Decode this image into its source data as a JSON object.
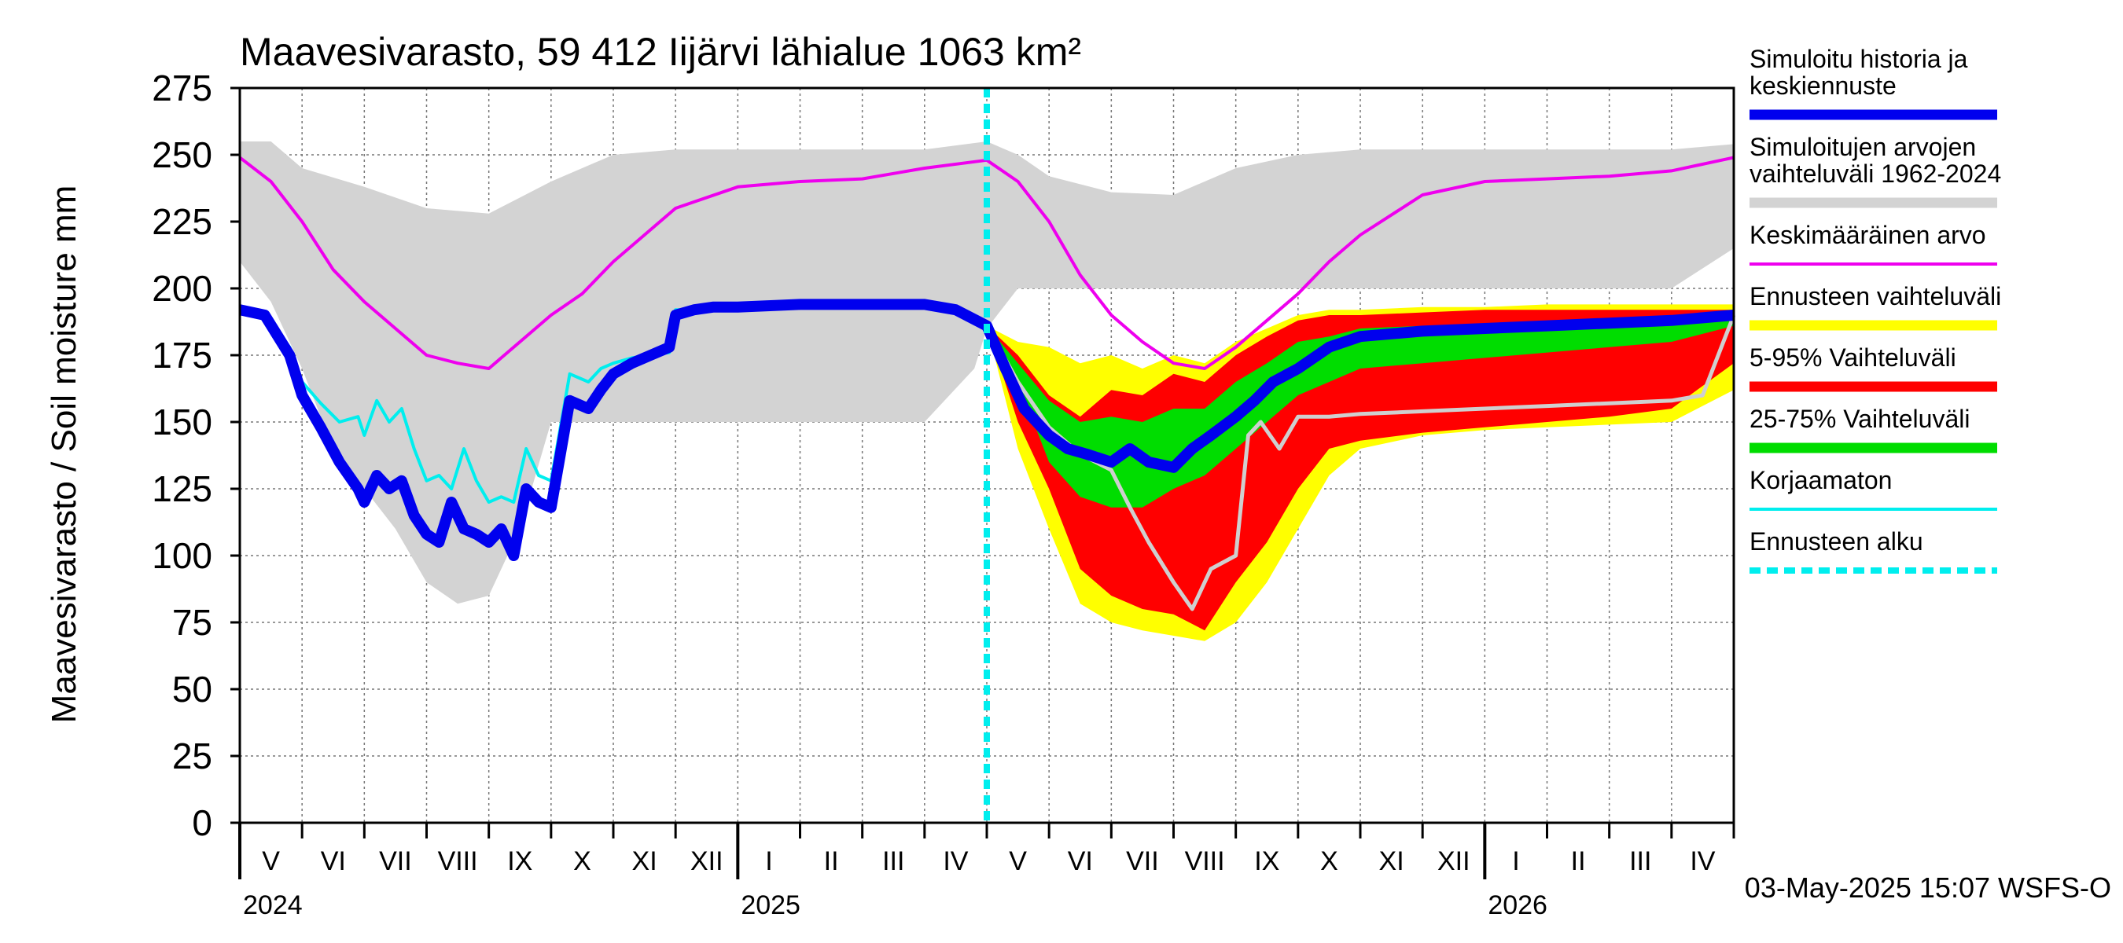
{
  "chart_data": {
    "type": "area",
    "title": "Maavesivarasto, 59 412 Iijärvi lähialue 1063 km²",
    "ylabel": "Maavesivarasto / Soil moisture   mm",
    "xlabel": "",
    "ylim": [
      0,
      275
    ],
    "yticks": [
      0,
      25,
      50,
      75,
      100,
      125,
      150,
      175,
      200,
      225,
      250,
      275
    ],
    "grid": true,
    "x_range_months": [
      0,
      24
    ],
    "x_unit": "months since 1 May 2024",
    "forecast_start": 12,
    "month_labels": [
      "V",
      "VI",
      "VII",
      "VIII",
      "IX",
      "X",
      "XI",
      "XII",
      "I",
      "II",
      "III",
      "IV",
      "V",
      "VI",
      "VII",
      "VIII",
      "IX",
      "X",
      "XI",
      "XII",
      "I",
      "II",
      "III",
      "IV"
    ],
    "year_labels": [
      {
        "label": "2024",
        "month": 0
      },
      {
        "label": "2025",
        "month": 8
      },
      {
        "label": "2026",
        "month": 20
      }
    ],
    "timestamp": "03-May-2025 15:07 WSFS-O",
    "legend": [
      {
        "key": "history",
        "label": "Simuloitu historia ja keskiennuste",
        "color": "#0000ee",
        "style": "thick"
      },
      {
        "key": "range",
        "label": "Simuloitujen arvojen vaihteluväli 1962-2024",
        "color": "#d3d3d3",
        "style": "thick"
      },
      {
        "key": "mean",
        "label": "Keskimääräinen arvo",
        "color": "#ee00ee",
        "style": "thin"
      },
      {
        "key": "fc_range",
        "label": "Ennusteen vaihteluväli",
        "color": "#ffff00",
        "style": "thick"
      },
      {
        "key": "p5_95",
        "label": "5-95% Vaihteluväli",
        "color": "#ff0000",
        "style": "thick"
      },
      {
        "key": "p25_75",
        "label": "25-75% Vaihteluväli",
        "color": "#00dd00",
        "style": "thick"
      },
      {
        "key": "uncorrected",
        "label": "Korjaamaton",
        "color": "#00eeee",
        "style": "thin"
      },
      {
        "key": "start",
        "label": "Ennusteen alku",
        "color": "#00eeee",
        "style": "dashed"
      }
    ],
    "series": [
      {
        "name": "Simuloitujen arvojen vaihteluväli 1962-2024 (max)",
        "x": [
          0,
          0.5,
          1,
          2,
          3,
          4,
          5,
          6,
          7,
          8,
          9,
          10,
          11,
          12,
          12.5,
          13,
          14,
          15,
          16,
          17,
          18,
          19,
          20,
          21,
          22,
          23,
          24
        ],
        "values": [
          255,
          255,
          245,
          238,
          230,
          228,
          240,
          250,
          252,
          252,
          252,
          252,
          252,
          255,
          250,
          242,
          236,
          235,
          245,
          250,
          252,
          252,
          252,
          252,
          252,
          252,
          254
        ]
      },
      {
        "name": "Simuloitujen arvojen vaihteluväli 1962-2024 (min)",
        "x": [
          0,
          0.5,
          1,
          1.5,
          2,
          2.5,
          3,
          3.5,
          4,
          4.5,
          5,
          6,
          7,
          8,
          9,
          10,
          11,
          11.8,
          12,
          12.5,
          13,
          14,
          15,
          16,
          17,
          18,
          19,
          20,
          21,
          22,
          23,
          24
        ],
        "values": [
          210,
          195,
          170,
          140,
          125,
          110,
          90,
          82,
          85,
          110,
          150,
          150,
          150,
          150,
          150,
          150,
          150,
          170,
          185,
          200,
          200,
          200,
          200,
          200,
          200,
          200,
          200,
          200,
          200,
          200,
          200,
          215
        ]
      },
      {
        "name": "Keskimääräinen arvo",
        "x": [
          0,
          0.5,
          1,
          1.5,
          2,
          2.5,
          3,
          3.5,
          4,
          4.5,
          5,
          5.5,
          6,
          6.5,
          7,
          8,
          9,
          10,
          11,
          12,
          12.5,
          13,
          13.5,
          14,
          14.5,
          15,
          15.5,
          16,
          16.5,
          17,
          17.5,
          18,
          19,
          20,
          21,
          22,
          23,
          24
        ],
        "values": [
          249,
          240,
          225,
          207,
          195,
          185,
          175,
          172,
          170,
          180,
          190,
          198,
          210,
          220,
          230,
          238,
          240,
          241,
          245,
          248,
          240,
          225,
          205,
          190,
          180,
          172,
          170,
          178,
          188,
          198,
          210,
          220,
          235,
          240,
          241,
          242,
          244,
          249
        ]
      },
      {
        "name": "Simuloitu historia ja keskiennuste",
        "x": [
          0,
          0.4,
          0.8,
          1,
          1.3,
          1.6,
          1.9,
          2,
          2.2,
          2.4,
          2.6,
          2.8,
          3,
          3.2,
          3.4,
          3.6,
          3.8,
          4,
          4.2,
          4.4,
          4.6,
          4.8,
          5,
          5.3,
          5.6,
          5.8,
          6,
          6.3,
          6.6,
          6.9,
          7,
          7.3,
          7.6,
          8,
          9,
          10,
          11,
          11.5,
          12,
          12.3,
          12.6,
          13,
          13.3,
          13.6,
          14,
          14.3,
          14.6,
          15,
          15.3,
          15.6,
          16,
          16.3,
          16.6,
          17,
          17.5,
          18,
          19,
          20,
          21,
          22,
          23,
          24
        ],
        "values": [
          192,
          190,
          175,
          160,
          148,
          135,
          125,
          120,
          130,
          125,
          128,
          115,
          108,
          105,
          120,
          110,
          108,
          105,
          110,
          100,
          125,
          120,
          118,
          158,
          155,
          162,
          168,
          172,
          175,
          178,
          190,
          192,
          193,
          193,
          194,
          194,
          194,
          192,
          186,
          170,
          155,
          145,
          140,
          138,
          135,
          140,
          135,
          133,
          140,
          145,
          152,
          158,
          165,
          170,
          178,
          182,
          184,
          185,
          186,
          187,
          188,
          190
        ]
      },
      {
        "name": "Korjaamaton",
        "x": [
          0,
          0.4,
          0.8,
          1,
          1.3,
          1.6,
          1.9,
          2,
          2.2,
          2.4,
          2.6,
          2.8,
          3,
          3.2,
          3.4,
          3.6,
          3.8,
          4,
          4.2,
          4.4,
          4.6,
          4.8,
          5,
          5.3,
          5.6,
          5.8,
          6,
          6.3,
          6.6,
          6.9,
          7,
          7.3,
          7.6,
          8,
          9,
          10,
          11,
          11.5,
          12
        ],
        "values": [
          192,
          190,
          178,
          165,
          157,
          150,
          152,
          145,
          158,
          150,
          155,
          140,
          128,
          130,
          125,
          140,
          128,
          120,
          122,
          120,
          140,
          130,
          128,
          168,
          165,
          170,
          172,
          174,
          175,
          176,
          192,
          192,
          192,
          192,
          193,
          193,
          193,
          191,
          186
        ]
      },
      {
        "name": "Ennusteen vaihteluväli (max)",
        "x": [
          12,
          12.5,
          13,
          13.5,
          14,
          14.5,
          15,
          15.5,
          16,
          16.5,
          17,
          17.5,
          18,
          19,
          20,
          21,
          22,
          23,
          24
        ],
        "values": [
          186,
          180,
          178,
          172,
          175,
          170,
          175,
          172,
          180,
          185,
          190,
          192,
          192,
          193,
          193,
          194,
          194,
          194,
          194
        ]
      },
      {
        "name": "Ennusteen vaihteluväli (min)",
        "x": [
          12,
          12.5,
          13,
          13.5,
          14,
          14.5,
          15,
          15.5,
          16,
          16.5,
          17,
          17.5,
          18,
          19,
          20,
          21,
          22,
          23,
          24
        ],
        "values": [
          186,
          140,
          110,
          82,
          75,
          72,
          70,
          68,
          75,
          90,
          110,
          130,
          140,
          145,
          147,
          148,
          149,
          150,
          162
        ]
      },
      {
        "name": "5-95% Vaihteluväli (max)",
        "x": [
          12,
          12.5,
          13,
          13.5,
          14,
          14.5,
          15,
          15.5,
          16,
          16.5,
          17,
          17.5,
          18,
          19,
          20,
          21,
          22,
          23,
          24
        ],
        "values": [
          186,
          175,
          160,
          152,
          162,
          160,
          168,
          165,
          175,
          182,
          188,
          190,
          190,
          191,
          192,
          192,
          192,
          192,
          192
        ]
      },
      {
        "name": "5-95% Vaihteluväli (min)",
        "x": [
          12,
          12.5,
          13,
          13.5,
          14,
          14.5,
          15,
          15.5,
          16,
          16.5,
          17,
          17.5,
          18,
          19,
          20,
          21,
          22,
          23,
          24
        ],
        "values": [
          186,
          150,
          125,
          95,
          85,
          80,
          78,
          72,
          90,
          105,
          125,
          140,
          143,
          146,
          148,
          150,
          152,
          155,
          172
        ]
      },
      {
        "name": "25-75% Vaihteluväli (max)",
        "x": [
          12,
          12.5,
          13,
          13.5,
          14,
          14.5,
          15,
          15.5,
          16,
          16.5,
          17,
          17.5,
          18,
          19,
          20,
          21,
          22,
          23,
          24
        ],
        "values": [
          186,
          172,
          158,
          150,
          152,
          150,
          155,
          155,
          165,
          172,
          180,
          182,
          185,
          186,
          186,
          187,
          188,
          188,
          190
        ]
      },
      {
        "name": "25-75% Vaihteluväli (min)",
        "x": [
          12,
          12.5,
          13,
          13.5,
          14,
          14.5,
          15,
          15.5,
          16,
          16.5,
          17,
          17.5,
          18,
          19,
          20,
          21,
          22,
          23,
          24
        ],
        "values": [
          186,
          165,
          135,
          122,
          118,
          118,
          125,
          130,
          140,
          150,
          160,
          165,
          170,
          172,
          174,
          176,
          178,
          180,
          186
        ]
      },
      {
        "name": "Korjaamaton (ennuste)",
        "x": [
          12,
          12.5,
          13,
          13.5,
          14,
          14.3,
          14.6,
          15,
          15.3,
          15.6,
          16,
          16.2,
          16.4,
          16.7,
          17,
          17.5,
          18,
          19,
          20,
          21,
          22,
          23,
          23.5,
          24
        ],
        "values": [
          186,
          165,
          148,
          138,
          132,
          118,
          105,
          90,
          80,
          95,
          100,
          145,
          150,
          140,
          152,
          152,
          153,
          154,
          155,
          156,
          157,
          158,
          160,
          190
        ]
      }
    ]
  }
}
